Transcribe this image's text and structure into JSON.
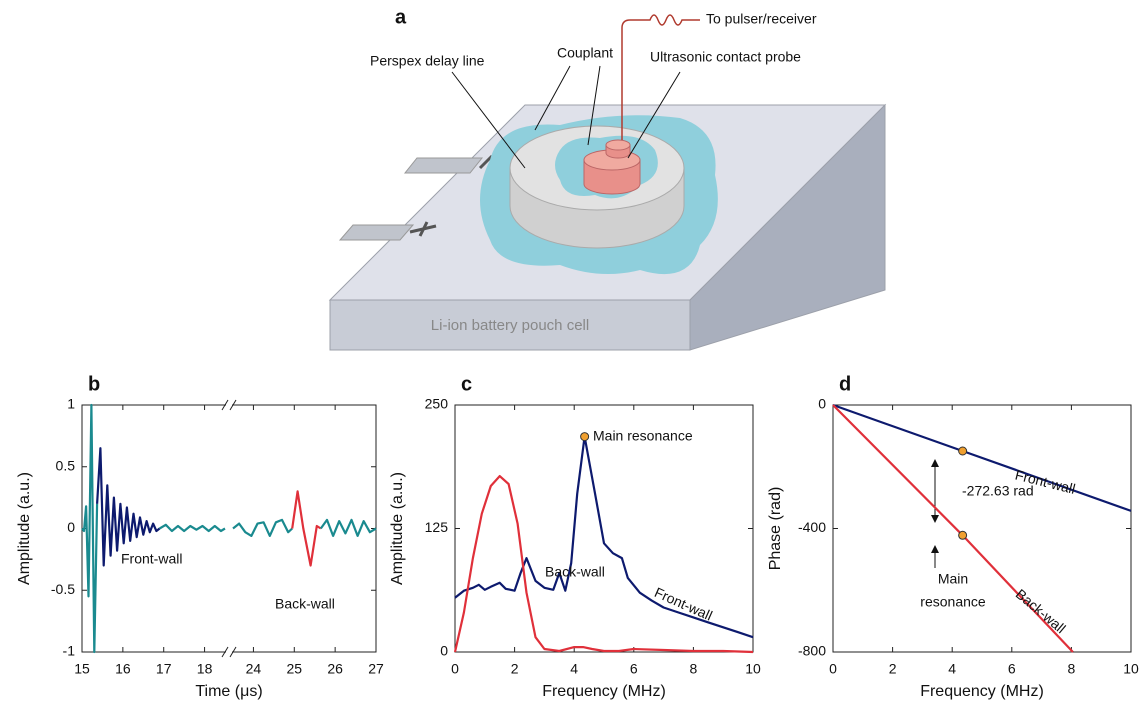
{
  "panel_a": {
    "label": "a",
    "to_pulser": "To pulser/receiver",
    "couplant": "Couplant",
    "delay_line": "Perspex delay line",
    "probe": "Ultrasonic contact probe",
    "cell": "Li-ion battery pouch cell"
  },
  "chart_data": [
    {
      "type": "line",
      "panel_label": "b",
      "xlabel": "Time (μs)",
      "ylabel": "Amplitude (a.u.)",
      "xlim": [
        15,
        27
      ],
      "xbreak": [
        18.5,
        23.5
      ],
      "ylim": [
        -1,
        1
      ],
      "xticks": [
        15,
        16,
        17,
        18,
        24,
        25,
        26,
        27
      ],
      "yticks": [
        -1,
        -0.5,
        0,
        0.5,
        1
      ],
      "series": [
        {
          "color": "#1a8a8f",
          "x": [
            15.0,
            15.05,
            15.1,
            15.16,
            15.23,
            15.3,
            15.37
          ],
          "values": [
            0,
            -0.02,
            0.18,
            -0.55,
            1,
            -1,
            0.2
          ]
        },
        {
          "color": "#0d1a6e",
          "x": [
            15.37,
            15.45,
            15.53,
            15.62,
            15.7,
            15.78,
            15.86,
            15.94,
            16.02,
            16.1,
            16.18,
            16.26,
            16.34,
            16.42,
            16.5,
            16.58,
            16.66,
            16.74,
            16.82,
            16.9
          ],
          "values": [
            0.2,
            0.65,
            -0.3,
            0.35,
            -0.22,
            0.25,
            -0.18,
            0.2,
            -0.12,
            0.17,
            -0.1,
            0.12,
            -0.07,
            0.09,
            -0.05,
            0.06,
            -0.03,
            0.04,
            -0.02,
            0
          ]
        },
        {
          "color": "#1a8a8f",
          "x": [
            16.9,
            17.05,
            17.2,
            17.35,
            17.5,
            17.65,
            17.8,
            17.95,
            18.1,
            18.25,
            18.4,
            18.5
          ],
          "values": [
            0,
            0.03,
            -0.02,
            0.02,
            -0.02,
            0.02,
            -0.01,
            0.02,
            -0.02,
            0.02,
            -0.02,
            0
          ]
        },
        {
          "color": "#1a8a8f",
          "x": [
            23.5,
            23.65,
            23.8,
            23.95,
            24.1,
            24.25,
            24.4,
            24.55,
            24.7,
            24.85,
            24.95
          ],
          "values": [
            0,
            0.04,
            -0.03,
            -0.06,
            0.04,
            0.05,
            -0.06,
            0.05,
            0.07,
            -0.03,
            0
          ]
        },
        {
          "color": "#e0303a",
          "x": [
            24.95,
            25.08,
            25.22,
            25.4,
            25.55,
            25.65
          ],
          "values": [
            0,
            0.3,
            0,
            -0.3,
            0.02,
            0
          ]
        },
        {
          "color": "#1a8a8f",
          "x": [
            25.65,
            25.8,
            25.95,
            26.1,
            26.25,
            26.4,
            26.55,
            26.7,
            26.85,
            27
          ],
          "values": [
            0,
            0.07,
            -0.06,
            0.06,
            -0.04,
            0.07,
            -0.06,
            0.06,
            -0.03,
            0
          ]
        }
      ],
      "annotations": [
        "Front-wall",
        "Back-wall"
      ],
      "markers": []
    },
    {
      "type": "line",
      "panel_label": "c",
      "xlabel": "Frequency (MHz)",
      "ylabel": "Amplitude (a.u.)",
      "xlim": [
        0,
        10
      ],
      "ylim": [
        0,
        250
      ],
      "xticks": [
        0,
        2,
        4,
        6,
        8,
        10
      ],
      "yticks": [
        0,
        125,
        250
      ],
      "series": [
        {
          "color": "#0d1a6e",
          "x": [
            0,
            0.3,
            0.6,
            0.8,
            1.0,
            1.2,
            1.5,
            1.7,
            2.0,
            2.2,
            2.4,
            2.7,
            3.0,
            3.3,
            3.5,
            3.7,
            3.9,
            4.1,
            4.35,
            4.7,
            5.0,
            5.3,
            5.6,
            5.8,
            6.2,
            6.6,
            7.0,
            7.5,
            8.0,
            8.5,
            9.0,
            9.5,
            10
          ],
          "values": [
            55,
            62,
            65,
            68,
            63,
            66,
            70,
            64,
            62,
            80,
            95,
            72,
            65,
            63,
            80,
            62,
            90,
            160,
            218,
            160,
            110,
            100,
            95,
            75,
            60,
            52,
            45,
            40,
            35,
            30,
            25,
            20,
            15
          ]
        },
        {
          "color": "#e0303a",
          "x": [
            0,
            0.3,
            0.6,
            0.9,
            1.2,
            1.5,
            1.8,
            2.1,
            2.4,
            2.7,
            3.0,
            3.5,
            4.0,
            4.3,
            4.6,
            5.0,
            5.5,
            6.0,
            7.0,
            8.0,
            9.0,
            10
          ],
          "values": [
            0,
            40,
            95,
            140,
            168,
            178,
            170,
            130,
            60,
            15,
            3,
            1,
            5,
            5,
            3,
            1,
            1,
            3,
            2,
            1,
            1,
            0
          ]
        }
      ],
      "annotations": [
        "Main resonance",
        "Front-wall",
        "Back-wall"
      ],
      "markers": [
        {
          "x": 4.35,
          "y": 218
        }
      ]
    },
    {
      "type": "line",
      "panel_label": "d",
      "xlabel": "Frequency (MHz)",
      "ylabel": "Phase (rad)",
      "xlim": [
        0,
        10
      ],
      "ylim": [
        -800,
        0
      ],
      "xticks": [
        0,
        2,
        4,
        6,
        8,
        10
      ],
      "yticks": [
        -800,
        -400,
        0
      ],
      "series": [
        {
          "color": "#0d1a6e",
          "x": [
            0,
            4.35,
            10
          ],
          "values": [
            0,
            -149,
            -343
          ]
        },
        {
          "color": "#e0303a",
          "x": [
            0,
            4.35,
            8.05
          ],
          "values": [
            0,
            -422,
            -800
          ]
        }
      ],
      "annotations": [
        "Front-wall",
        "-272.63 rad",
        "Main",
        "resonance",
        "Back-wall"
      ],
      "markers": [
        {
          "x": 4.35,
          "y": -149
        },
        {
          "x": 4.35,
          "y": -422
        }
      ]
    }
  ]
}
